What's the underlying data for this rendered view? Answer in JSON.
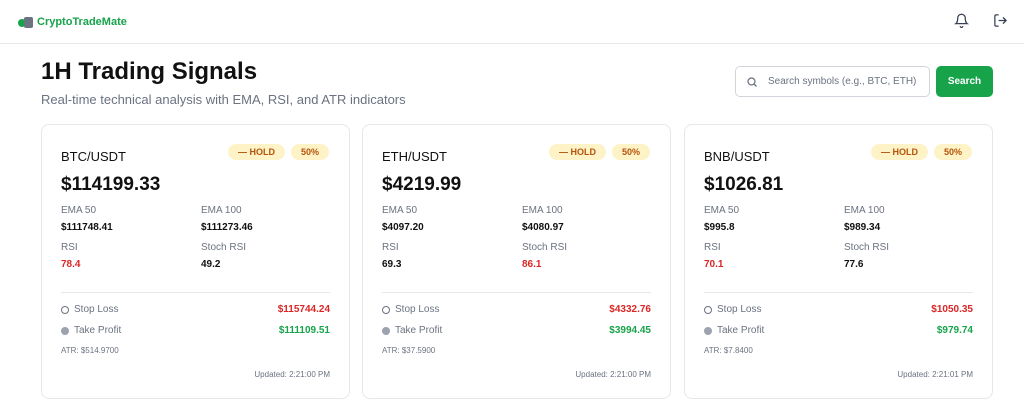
{
  "app": {
    "name": "CryptoTradeMate"
  },
  "header": {
    "title": "1H Trading Signals",
    "subtitle": "Real-time technical analysis with EMA, RSI, and ATR indicators"
  },
  "search": {
    "placeholder": "Search symbols (e.g., BTC, ETH)",
    "value": "",
    "button_label": "Search"
  },
  "labels": {
    "ema50": "EMA 50",
    "ema100": "EMA 100",
    "rsi": "RSI",
    "stoch": "Stoch RSI",
    "stop": "Stop Loss",
    "take": "Take Profit"
  },
  "colors": {
    "accent": "#16a34a",
    "negative": "#dc2626",
    "hold_bg": "#fef3c7",
    "hold_fg": "#b45309"
  },
  "cards": [
    {
      "symbol": "BTC/USDT",
      "signal": "— HOLD",
      "confidence": "50%",
      "price": "$114199.33",
      "ema50": "$111748.41",
      "ema100": "$111273.46",
      "rsi": "78.4",
      "rsi_color": "red",
      "stoch_rsi": "49.2",
      "stoch_color": "",
      "stop_loss": "$115744.24",
      "take_profit": "$111109.51",
      "atr": "ATR: $514.9700",
      "updated": "Updated: 2:21:00 PM"
    },
    {
      "symbol": "ETH/USDT",
      "signal": "— HOLD",
      "confidence": "50%",
      "price": "$4219.99",
      "ema50": "$4097.20",
      "ema100": "$4080.97",
      "rsi": "69.3",
      "rsi_color": "",
      "stoch_rsi": "86.1",
      "stoch_color": "red",
      "stop_loss": "$4332.76",
      "take_profit": "$3994.45",
      "atr": "ATR: $37.5900",
      "updated": "Updated: 2:21:00 PM"
    },
    {
      "symbol": "BNB/USDT",
      "signal": "— HOLD",
      "confidence": "50%",
      "price": "$1026.81",
      "ema50": "$995.8",
      "ema100": "$989.34",
      "rsi": "70.1",
      "rsi_color": "red",
      "stoch_rsi": "77.6",
      "stoch_color": "",
      "stop_loss": "$1050.35",
      "take_profit": "$979.74",
      "atr": "ATR: $7.8400",
      "updated": "Updated: 2:21:01 PM"
    }
  ]
}
